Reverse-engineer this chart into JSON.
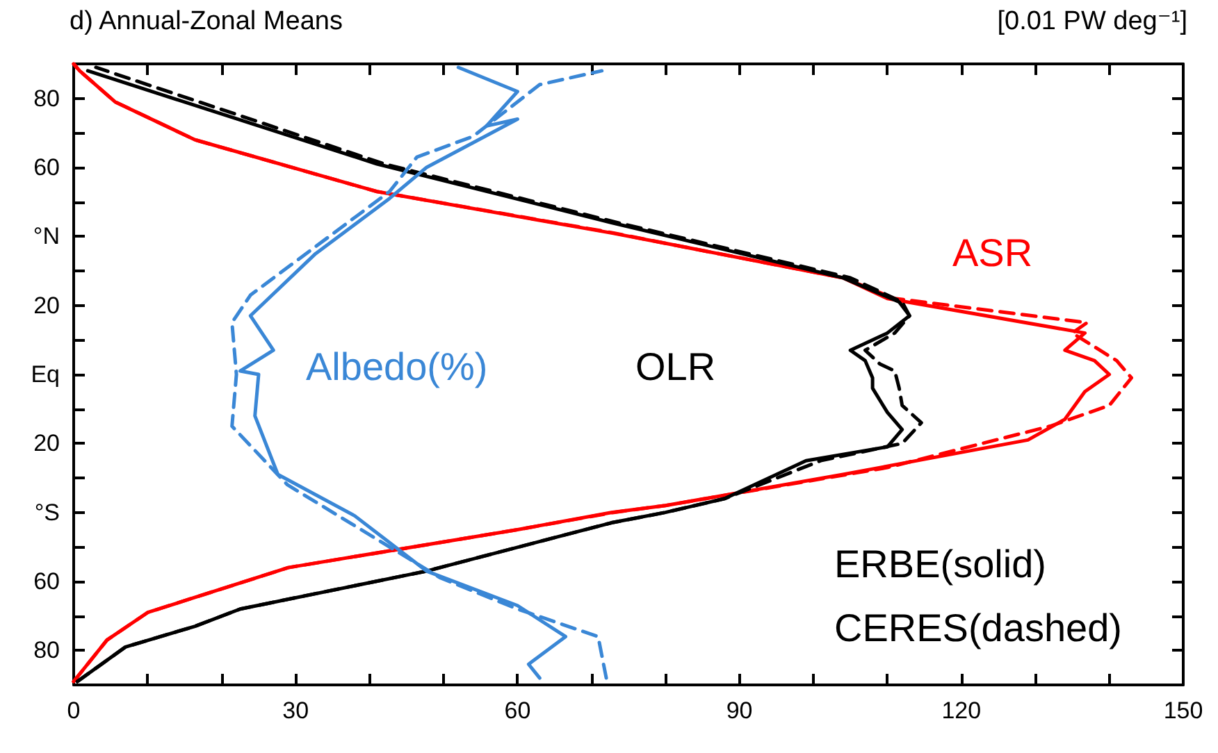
{
  "chart_data": {
    "type": "line",
    "title": "d) Annual-Zonal Means",
    "subtitle": "[0.01 PW deg⁻¹]",
    "xlim": [
      0,
      150
    ],
    "ylim": [
      -90,
      90
    ],
    "xticks": [
      0,
      {
        "value": 10,
        "label": null
      },
      {
        "value": 20,
        "label": null
      },
      30,
      {
        "value": 40,
        "label": null
      },
      {
        "value": 50,
        "label": null
      },
      60,
      {
        "value": 70,
        "label": null
      },
      {
        "value": 80,
        "label": null
      },
      90,
      {
        "value": 100,
        "label": null
      },
      {
        "value": 110,
        "label": null
      },
      120,
      {
        "value": 130,
        "label": null
      },
      {
        "value": 140,
        "label": null
      },
      150
    ],
    "yticks": [
      {
        "value": -90,
        "label": null
      },
      {
        "value": -80,
        "label": "80"
      },
      {
        "value": -70,
        "label": null
      },
      {
        "value": -60,
        "label": "60"
      },
      {
        "value": -50,
        "label": null
      },
      {
        "value": -40,
        "label": "°S"
      },
      {
        "value": -30,
        "label": null
      },
      {
        "value": -20,
        "label": "20"
      },
      {
        "value": -10,
        "label": null
      },
      {
        "value": 0,
        "label": "Eq"
      },
      {
        "value": 10,
        "label": null
      },
      {
        "value": 20,
        "label": "20"
      },
      {
        "value": 30,
        "label": null
      },
      {
        "value": 40,
        "label": "°N"
      },
      {
        "value": 50,
        "label": null
      },
      {
        "value": 60,
        "label": "60"
      },
      {
        "value": 70,
        "label": null
      },
      {
        "value": 80,
        "label": "80"
      },
      {
        "value": 90,
        "label": null
      }
    ],
    "grid": false,
    "legend": false,
    "marker": "none",
    "series": [
      {
        "name": "ASR",
        "color": "#ff0000",
        "line_style": "solid",
        "x": [
          0,
          4.5,
          10,
          29,
          60,
          72.7,
          80,
          104,
          129,
          134,
          136.7,
          140,
          138,
          134,
          136.7,
          110,
          104,
          80,
          72.7,
          41,
          16.4,
          5.6,
          0.8,
          0
        ],
        "values": [
          -89,
          -77,
          -69,
          -56,
          -45,
          -40,
          -38,
          -29,
          -19,
          -13,
          -5,
          0,
          4,
          7,
          12,
          22,
          28,
          38,
          41,
          53,
          68,
          79,
          88,
          90
        ]
      },
      {
        "color": "#ff0000",
        "line_style": "dashed",
        "x": [
          0,
          4.5,
          10,
          29,
          60,
          73,
          80,
          110,
          132,
          140,
          143,
          141,
          135,
          137,
          111,
          104,
          80,
          73,
          41,
          16.4,
          5.6,
          0.8,
          0
        ],
        "values": [
          -89,
          -77,
          -69,
          -56,
          -45,
          -40,
          -38,
          -27,
          -15,
          -9,
          -1,
          4,
          12,
          15,
          22,
          28,
          38,
          41,
          53,
          68,
          79,
          88,
          90
        ]
      },
      {
        "name": "OLR",
        "color": "#000000",
        "line_style": "solid",
        "x": [
          0.5,
          7,
          16.4,
          22.5,
          47.7,
          72.7,
          80,
          88,
          99,
          110,
          112,
          110,
          108,
          108,
          107,
          105,
          110,
          113,
          111.6,
          104,
          72.7,
          41,
          1.9
        ],
        "values": [
          -89,
          -79,
          -73,
          -68,
          -57,
          -43,
          -40,
          -36,
          -25,
          -21,
          -16,
          -11,
          -4,
          -1,
          4,
          7,
          12,
          17,
          21,
          28,
          44,
          61,
          88
        ]
      },
      {
        "color": "#000000",
        "line_style": "dashed",
        "x": [
          0.5,
          7,
          16.4,
          22.5,
          47.7,
          72.7,
          80,
          88,
          101,
          112,
          114.6,
          112,
          111.6,
          111,
          109,
          107,
          111,
          113,
          112,
          105,
          73.5,
          42,
          3
        ],
        "values": [
          -89,
          -79,
          -73,
          -68,
          -57,
          -43,
          -40,
          -36,
          -25,
          -20,
          -14,
          -9,
          -4,
          1,
          3,
          7,
          12,
          17,
          21,
          28,
          44,
          61,
          89
        ]
      },
      {
        "name": "Albedo(%)",
        "color": "#3a87d6",
        "line_style": "solid",
        "x": [
          63,
          61.5,
          66.5,
          60,
          47.7,
          38,
          27.6,
          24.5,
          25,
          22.5,
          27,
          23.9,
          32.7,
          42.7,
          47.7,
          60,
          55.8,
          60,
          52
        ],
        "values": [
          -88,
          -84,
          -76,
          -67,
          -57,
          -41,
          -29,
          -12,
          0,
          1,
          7,
          17,
          35,
          51,
          60,
          74,
          72,
          82,
          89
        ]
      },
      {
        "color": "#3a87d6",
        "line_style": "dashed",
        "x": [
          72,
          70.9,
          60,
          49.6,
          28.9,
          21.4,
          22,
          21.4,
          23.9,
          42.7,
          46.4,
          54,
          63,
          71.4
        ],
        "values": [
          -88,
          -76,
          -68,
          -59,
          -32,
          -15,
          0,
          15,
          23,
          53,
          63,
          69,
          84,
          88
        ]
      }
    ],
    "annotations": [
      "ERBE(solid)",
      "CERES(dashed)"
    ]
  }
}
